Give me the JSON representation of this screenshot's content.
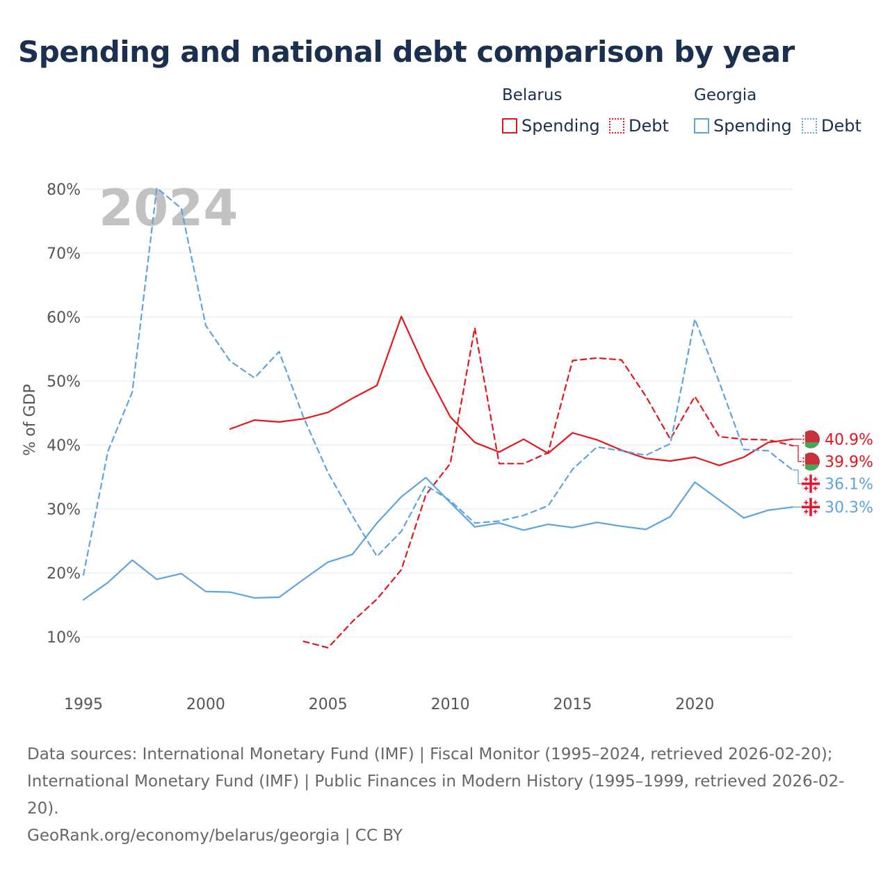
{
  "chart_data": {
    "type": "line",
    "title": "Spending and national debt comparison by year",
    "year_watermark": "2024",
    "ylabel": "% of GDP",
    "xlabel": "",
    "xlim": [
      1995,
      2024
    ],
    "ylim": [
      0,
      85
    ],
    "x_ticks": [
      1995,
      2000,
      2005,
      2010,
      2015,
      2020
    ],
    "y_ticks": [
      10,
      20,
      30,
      40,
      50,
      60,
      70,
      80
    ],
    "y_tick_labels": [
      "10%",
      "20%",
      "30%",
      "40%",
      "50%",
      "60%",
      "70%",
      "80%"
    ],
    "grid": "horizontal",
    "legend": {
      "groups": [
        {
          "name": "Belarus",
          "color": "#e8141c",
          "entries": [
            {
              "label": "Spending",
              "style": "solid"
            },
            {
              "label": "Debt",
              "style": "dotted"
            }
          ]
        },
        {
          "name": "Georgia",
          "color": "#5da3e0",
          "entries": [
            {
              "label": "Spending",
              "style": "solid"
            },
            {
              "label": "Debt",
              "style": "dotted"
            }
          ]
        }
      ]
    },
    "series": [
      {
        "name": "Belarus Spending",
        "country": "Belarus",
        "metric": "Spending",
        "color": "#e8141c",
        "dashed": false,
        "x": [
          2001,
          2002,
          2003,
          2004,
          2005,
          2006,
          2007,
          2008,
          2009,
          2010,
          2011,
          2012,
          2013,
          2014,
          2015,
          2016,
          2017,
          2018,
          2019,
          2020,
          2021,
          2022,
          2023,
          2024
        ],
        "values": [
          42.5,
          43.9,
          43.6,
          44.1,
          45.1,
          47.3,
          49.3,
          60.1,
          51.7,
          44.4,
          40.4,
          38.9,
          40.9,
          38.7,
          41.9,
          40.8,
          39.2,
          37.9,
          37.5,
          38.1,
          36.8,
          38.1,
          40.4,
          40.9
        ],
        "end_label": "40.9%"
      },
      {
        "name": "Belarus Debt",
        "country": "Belarus",
        "metric": "Debt",
        "color": "#e8141c",
        "dashed": true,
        "x": [
          2004,
          2005,
          2006,
          2007,
          2008,
          2009,
          2010,
          2011,
          2012,
          2013,
          2014,
          2015,
          2016,
          2017,
          2018,
          2019,
          2020,
          2021,
          2022,
          2023,
          2024
        ],
        "values": [
          9.3,
          8.3,
          12.4,
          15.9,
          20.5,
          32.2,
          37.1,
          58.3,
          37.1,
          37.1,
          38.8,
          53.2,
          53.6,
          53.3,
          47.6,
          40.9,
          47.6,
          41.3,
          40.9,
          40.8,
          39.9
        ],
        "end_label": "39.9%"
      },
      {
        "name": "Georgia Spending",
        "country": "Georgia",
        "metric": "Spending",
        "color": "#5da3e0",
        "dashed": false,
        "x": [
          1995,
          1996,
          1997,
          1998,
          1999,
          2000,
          2001,
          2002,
          2003,
          2004,
          2005,
          2006,
          2007,
          2008,
          2009,
          2010,
          2011,
          2012,
          2013,
          2014,
          2015,
          2016,
          2017,
          2018,
          2019,
          2020,
          2021,
          2022,
          2023,
          2024
        ],
        "values": [
          15.8,
          18.5,
          22.0,
          19.0,
          19.9,
          17.1,
          17.0,
          16.1,
          16.2,
          19.0,
          21.7,
          22.9,
          27.8,
          31.9,
          34.9,
          31.0,
          27.2,
          27.8,
          26.7,
          27.6,
          27.1,
          27.9,
          27.3,
          26.8,
          28.8,
          34.2,
          31.4,
          28.6,
          29.8,
          30.3
        ],
        "end_label": "30.3%"
      },
      {
        "name": "Georgia Debt",
        "country": "Georgia",
        "metric": "Debt",
        "color": "#5da3e0",
        "dashed": true,
        "x": [
          1995,
          1996,
          1997,
          1998,
          1999,
          2000,
          2001,
          2002,
          2003,
          2004,
          2005,
          2006,
          2007,
          2008,
          2009,
          2010,
          2011,
          2012,
          2013,
          2014,
          2015,
          2016,
          2017,
          2018,
          2019,
          2020,
          2021,
          2022,
          2023,
          2024
        ],
        "values": [
          19.7,
          39.0,
          48.3,
          80.2,
          77.0,
          58.7,
          53.1,
          50.5,
          54.6,
          44.3,
          35.7,
          28.9,
          22.6,
          26.5,
          33.7,
          31.3,
          27.8,
          28.1,
          29.0,
          30.5,
          36.2,
          39.7,
          39.1,
          38.4,
          40.2,
          59.7,
          49.8,
          39.3,
          39.1,
          36.1
        ],
        "end_label": "36.1%"
      }
    ]
  },
  "footer": {
    "sources": "Data sources: International Monetary Fund (IMF) | Fiscal Monitor (1995–2024, retrieved 2026-02-20); International Monetary Fund (IMF) | Public Finances in Modern History (1995–1999, retrieved 2026-02-20).",
    "credit": "GeoRank.org/economy/belarus/georgia | CC BY"
  }
}
